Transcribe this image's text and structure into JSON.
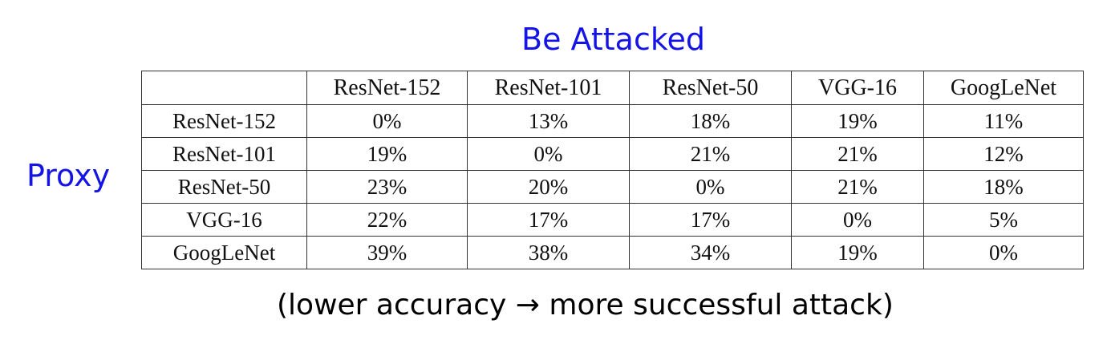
{
  "top_label": "Be Attacked",
  "side_label": "Proxy",
  "note": "(lower accuracy → more successful attack)",
  "colors": {
    "label": "#1414e6",
    "border": "#333333"
  },
  "table": {
    "corner": "",
    "columns": [
      "ResNet-152",
      "ResNet-101",
      "ResNet-50",
      "VGG-16",
      "GoogLeNet"
    ],
    "rows": [
      {
        "name": "ResNet-152",
        "values": [
          "0%",
          "13%",
          "18%",
          "19%",
          "11%"
        ]
      },
      {
        "name": "ResNet-101",
        "values": [
          "19%",
          "0%",
          "21%",
          "21%",
          "12%"
        ]
      },
      {
        "name": "ResNet-50",
        "values": [
          "23%",
          "20%",
          "0%",
          "21%",
          "18%"
        ]
      },
      {
        "name": "VGG-16",
        "values": [
          "22%",
          "17%",
          "17%",
          "0%",
          "5%"
        ]
      },
      {
        "name": "GoogLeNet",
        "values": [
          "39%",
          "38%",
          "34%",
          "19%",
          "0%"
        ]
      }
    ]
  }
}
